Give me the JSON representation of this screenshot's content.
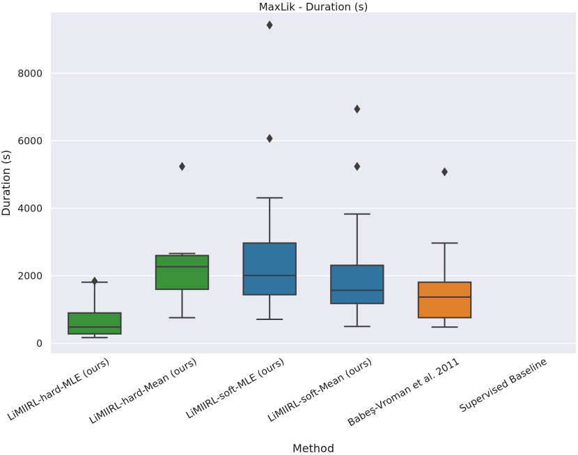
{
  "chart_data": {
    "type": "box",
    "title": "MaxLik - Duration (s)",
    "xlabel": "Method",
    "ylabel": "Duration (s)",
    "ylim": [
      -300,
      9800
    ],
    "yticks": [
      0,
      2000,
      4000,
      6000,
      8000
    ],
    "yticklabels": [
      "0",
      "2000",
      "4000",
      "6000",
      "8000"
    ],
    "grid": true,
    "categories": [
      "LiMIIRL-hard-MLE (ours)",
      "LiMIIRL-hard-Mean (ours)",
      "LiMIIRL-soft-MLE (ours)",
      "LiMIIRL-soft-Mean (ours)",
      "Babeş-Vroman et al. 2011",
      "Supervised Baseline"
    ],
    "boxes": [
      {
        "name": "LiMIIRL-hard-MLE (ours)",
        "color": "#3a923a",
        "whislo": 170,
        "q1": 280,
        "med": 480,
        "q3": 900,
        "whishi": 1810,
        "fliers": [
          1840
        ]
      },
      {
        "name": "LiMIIRL-hard-Mean (ours)",
        "color": "#3a923a",
        "whislo": 760,
        "q1": 1600,
        "med": 2270,
        "q3": 2600,
        "whishi": 2660,
        "fliers": [
          5240
        ]
      },
      {
        "name": "LiMIIRL-soft-MLE (ours)",
        "color": "#3274a1",
        "whislo": 710,
        "q1": 1440,
        "med": 2010,
        "q3": 2970,
        "whishi": 4310,
        "fliers": [
          6070,
          9430
        ]
      },
      {
        "name": "LiMIIRL-soft-Mean (ours)",
        "color": "#3274a1",
        "whislo": 500,
        "q1": 1180,
        "med": 1570,
        "q3": 2310,
        "whishi": 3830,
        "fliers": [
          5240,
          6940
        ]
      },
      {
        "name": "Babeş-Vroman et al. 2011",
        "color": "#e1812c",
        "whislo": 480,
        "q1": 760,
        "med": 1370,
        "q3": 1810,
        "whishi": 2970,
        "fliers": [
          5080
        ]
      },
      {
        "name": "Supervised Baseline",
        "color": "",
        "whislo": null,
        "q1": null,
        "med": null,
        "q3": null,
        "whishi": null,
        "fliers": []
      }
    ]
  },
  "colors": {
    "plot_background": "#eaeaf2",
    "grid": "#ffffff",
    "line": "#3d3d3d"
  }
}
